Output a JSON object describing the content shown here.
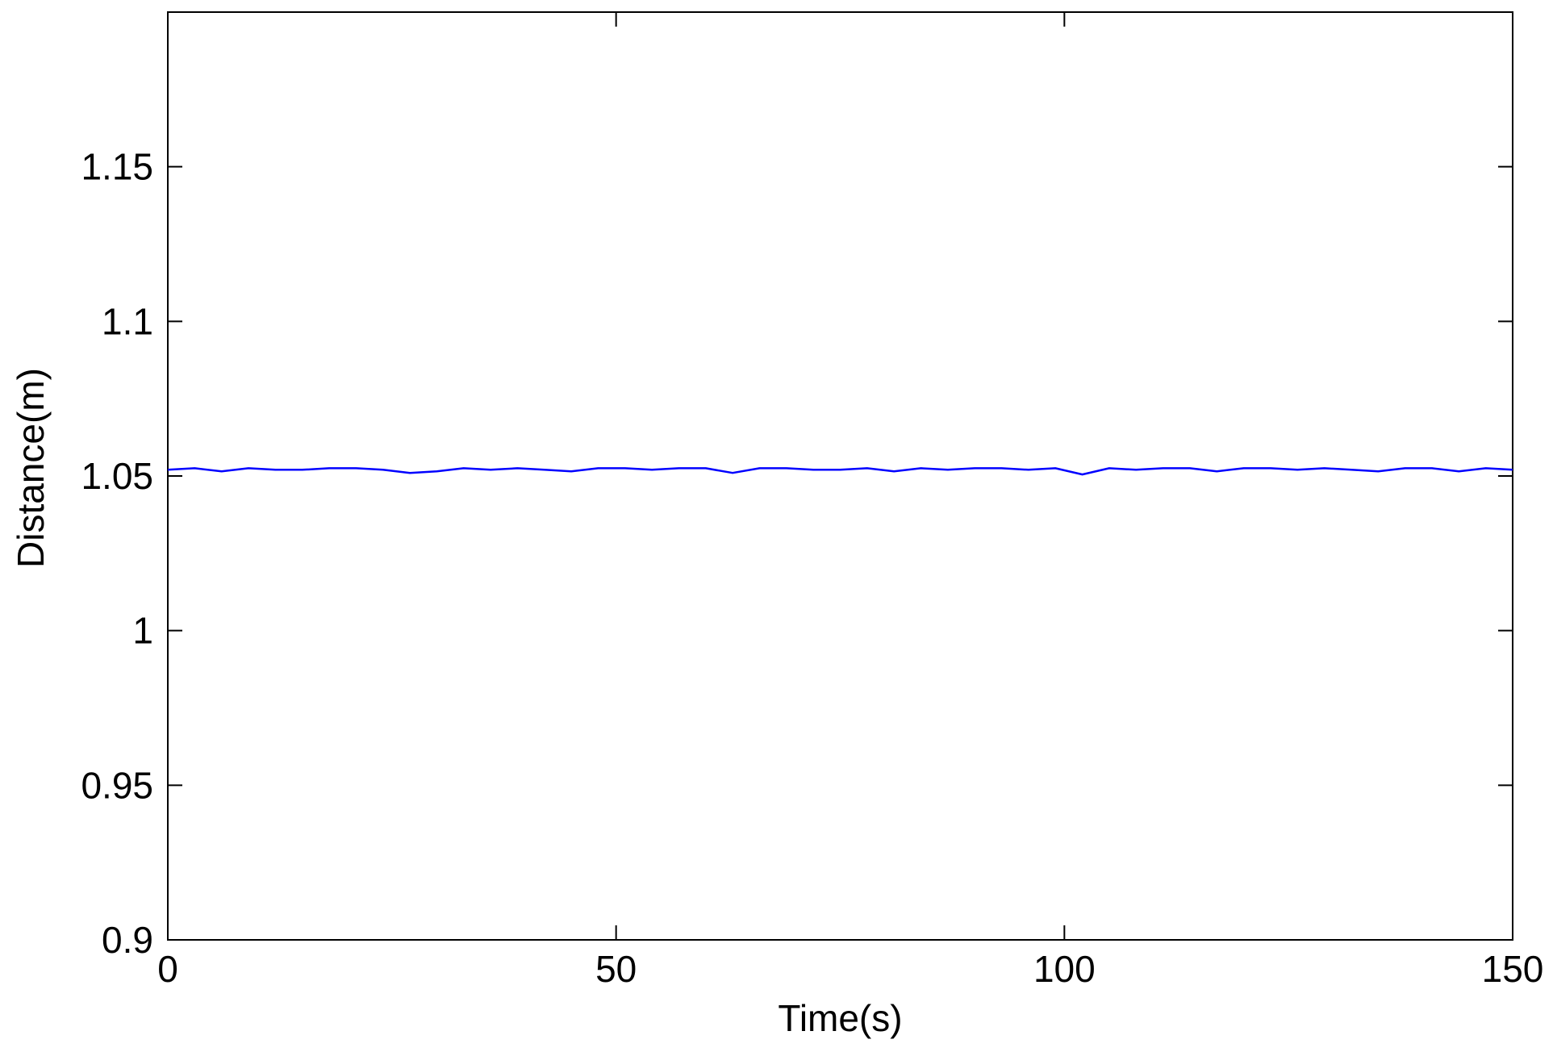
{
  "chart_data": {
    "type": "line",
    "title": "",
    "xlabel": "Time(s)",
    "ylabel": "Distance(m)",
    "xlim": [
      0,
      150
    ],
    "ylim": [
      0.9,
      1.2
    ],
    "xticks": [
      0,
      50,
      100,
      150
    ],
    "xtick_labels": [
      "0",
      "50",
      "100",
      "150"
    ],
    "yticks": [
      0.9,
      0.95,
      1.0,
      1.05,
      1.1,
      1.15
    ],
    "ytick_labels": [
      "0.9",
      "0.95",
      "1",
      "1.05",
      "1.1",
      "1.15"
    ],
    "grid": false,
    "legend": "none",
    "series": [
      {
        "color": "#0000ff",
        "x": [
          0,
          3,
          6,
          9,
          12,
          15,
          18,
          21,
          24,
          27,
          30,
          33,
          36,
          39,
          42,
          45,
          48,
          51,
          54,
          57,
          60,
          63,
          66,
          69,
          72,
          75,
          78,
          81,
          84,
          87,
          90,
          93,
          96,
          99,
          102,
          105,
          108,
          111,
          114,
          117,
          120,
          123,
          126,
          129,
          132,
          135,
          138,
          141,
          144,
          147,
          150
        ],
        "y": [
          1.052,
          1.0525,
          1.0515,
          1.0525,
          1.052,
          1.052,
          1.0525,
          1.0525,
          1.052,
          1.051,
          1.0515,
          1.0525,
          1.052,
          1.0525,
          1.052,
          1.0515,
          1.0525,
          1.0525,
          1.052,
          1.0525,
          1.0525,
          1.051,
          1.0525,
          1.0525,
          1.052,
          1.052,
          1.0525,
          1.0515,
          1.0525,
          1.052,
          1.0525,
          1.0525,
          1.052,
          1.0525,
          1.0505,
          1.0525,
          1.052,
          1.0525,
          1.0525,
          1.0515,
          1.0525,
          1.0525,
          1.052,
          1.0525,
          1.052,
          1.0515,
          1.0525,
          1.0525,
          1.0515,
          1.0525,
          1.052
        ]
      }
    ]
  }
}
